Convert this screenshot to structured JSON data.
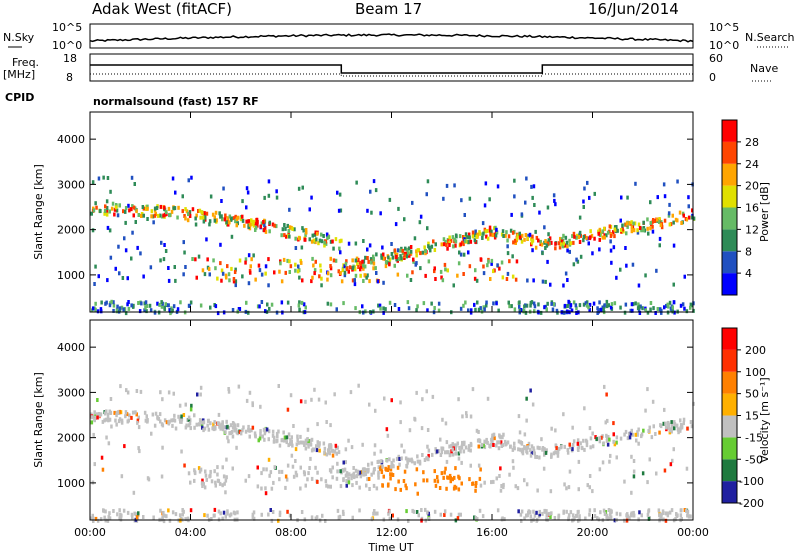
{
  "header": {
    "station": "Adak West (fitACF)",
    "beam": "Beam 17",
    "date": "16/Jun/2014"
  },
  "noise_panel": {
    "left_label": "N.Sky",
    "left_ticks": [
      "10^5",
      "10^0"
    ],
    "right_label": "N.Search",
    "right_ticks": [
      "10^5",
      "10^0"
    ]
  },
  "freq_panel": {
    "left_label_1": "Freq.",
    "left_label_2": "[MHz]",
    "left_ticks": [
      "18",
      "8"
    ],
    "right_label": "Nave",
    "right_ticks": [
      "60",
      "0"
    ],
    "cpid_label": "CPID",
    "cpid_text": "normalsound (fast) 157 RF"
  },
  "time_axis": {
    "label": "Time UT",
    "ticks": [
      "00:00",
      "04:00",
      "08:00",
      "12:00",
      "16:00",
      "20:00",
      "00:00"
    ]
  },
  "chart_data": [
    {
      "type": "heatmap",
      "panel": "power",
      "xlabel": "Time UT",
      "ylabel": "Slant Range [km]",
      "x_range_hours": [
        0,
        24
      ],
      "ylim": [
        180,
        4600
      ],
      "y_ticks": [
        "1000",
        "2000",
        "3000",
        "4000"
      ],
      "colorbar": {
        "label": "Power [dB]",
        "ticks": [
          "28",
          "24",
          "20",
          "16",
          "12",
          "8",
          "4"
        ],
        "colors": [
          "#0000ff",
          "#2050c0",
          "#2e8b57",
          "#66bb66",
          "#e0e000",
          "#ffa500",
          "#ff4500",
          "#ff0000"
        ]
      }
    },
    {
      "type": "heatmap",
      "panel": "velocity",
      "xlabel": "Time UT",
      "ylabel": "Slant Range [km]",
      "x_range_hours": [
        0,
        24
      ],
      "ylim": [
        180,
        4600
      ],
      "y_ticks": [
        "1000",
        "2000",
        "3000",
        "4000"
      ],
      "colorbar": {
        "label": "Velocity [m s⁻¹]",
        "ticks": [
          "200",
          "100",
          "50",
          "15",
          "-15",
          "-50",
          "-100",
          "-200"
        ],
        "colors": [
          "#2020a0",
          "#1f7a3f",
          "#66cc33",
          "#c0c0c0",
          "#ffb000",
          "#ff8000",
          "#ff3000",
          "#ff0000"
        ]
      }
    }
  ]
}
